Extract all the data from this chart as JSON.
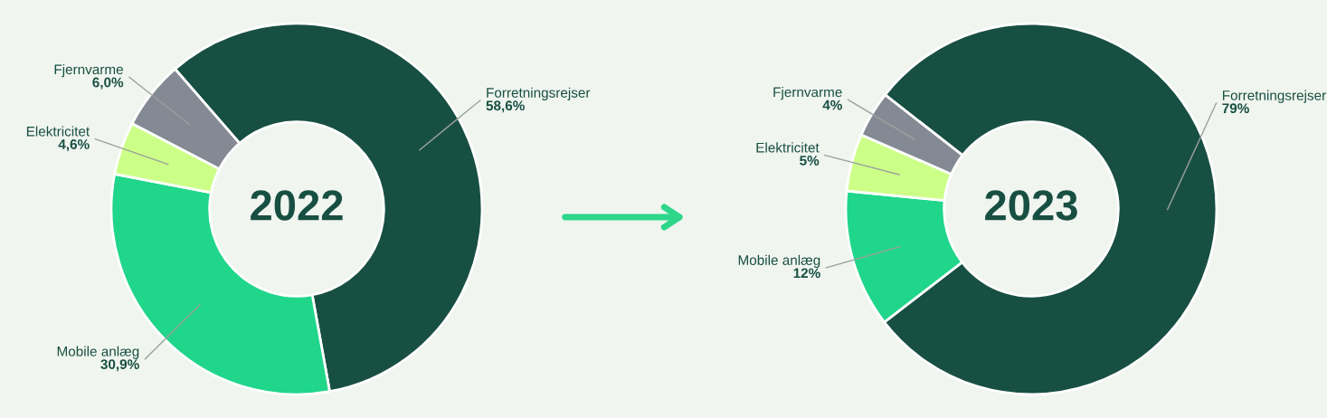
{
  "chart_data": [
    {
      "type": "donut",
      "title": "2022",
      "categories": [
        "Forretningsrejser",
        "Mobile anlæg",
        "Elektricitet",
        "Fjernvarme"
      ],
      "values": [
        58.6,
        30.9,
        4.6,
        6.0
      ],
      "colors": [
        "#184f43",
        "#20d68a",
        "#ccff88",
        "#848a94"
      ],
      "value_labels": [
        "58,6%",
        "30,9%",
        "4,6%",
        "6,0%"
      ]
    },
    {
      "type": "donut",
      "title": "2023",
      "categories": [
        "Forretningsrejser",
        "Mobile anlæg",
        "Elektricitet",
        "Fjernvarme"
      ],
      "values": [
        79,
        12,
        5,
        4
      ],
      "colors": [
        "#184f43",
        "#20d68a",
        "#ccff88",
        "#848a94"
      ],
      "value_labels": [
        "79%",
        "12%",
        "5%",
        "4%"
      ]
    }
  ]
}
